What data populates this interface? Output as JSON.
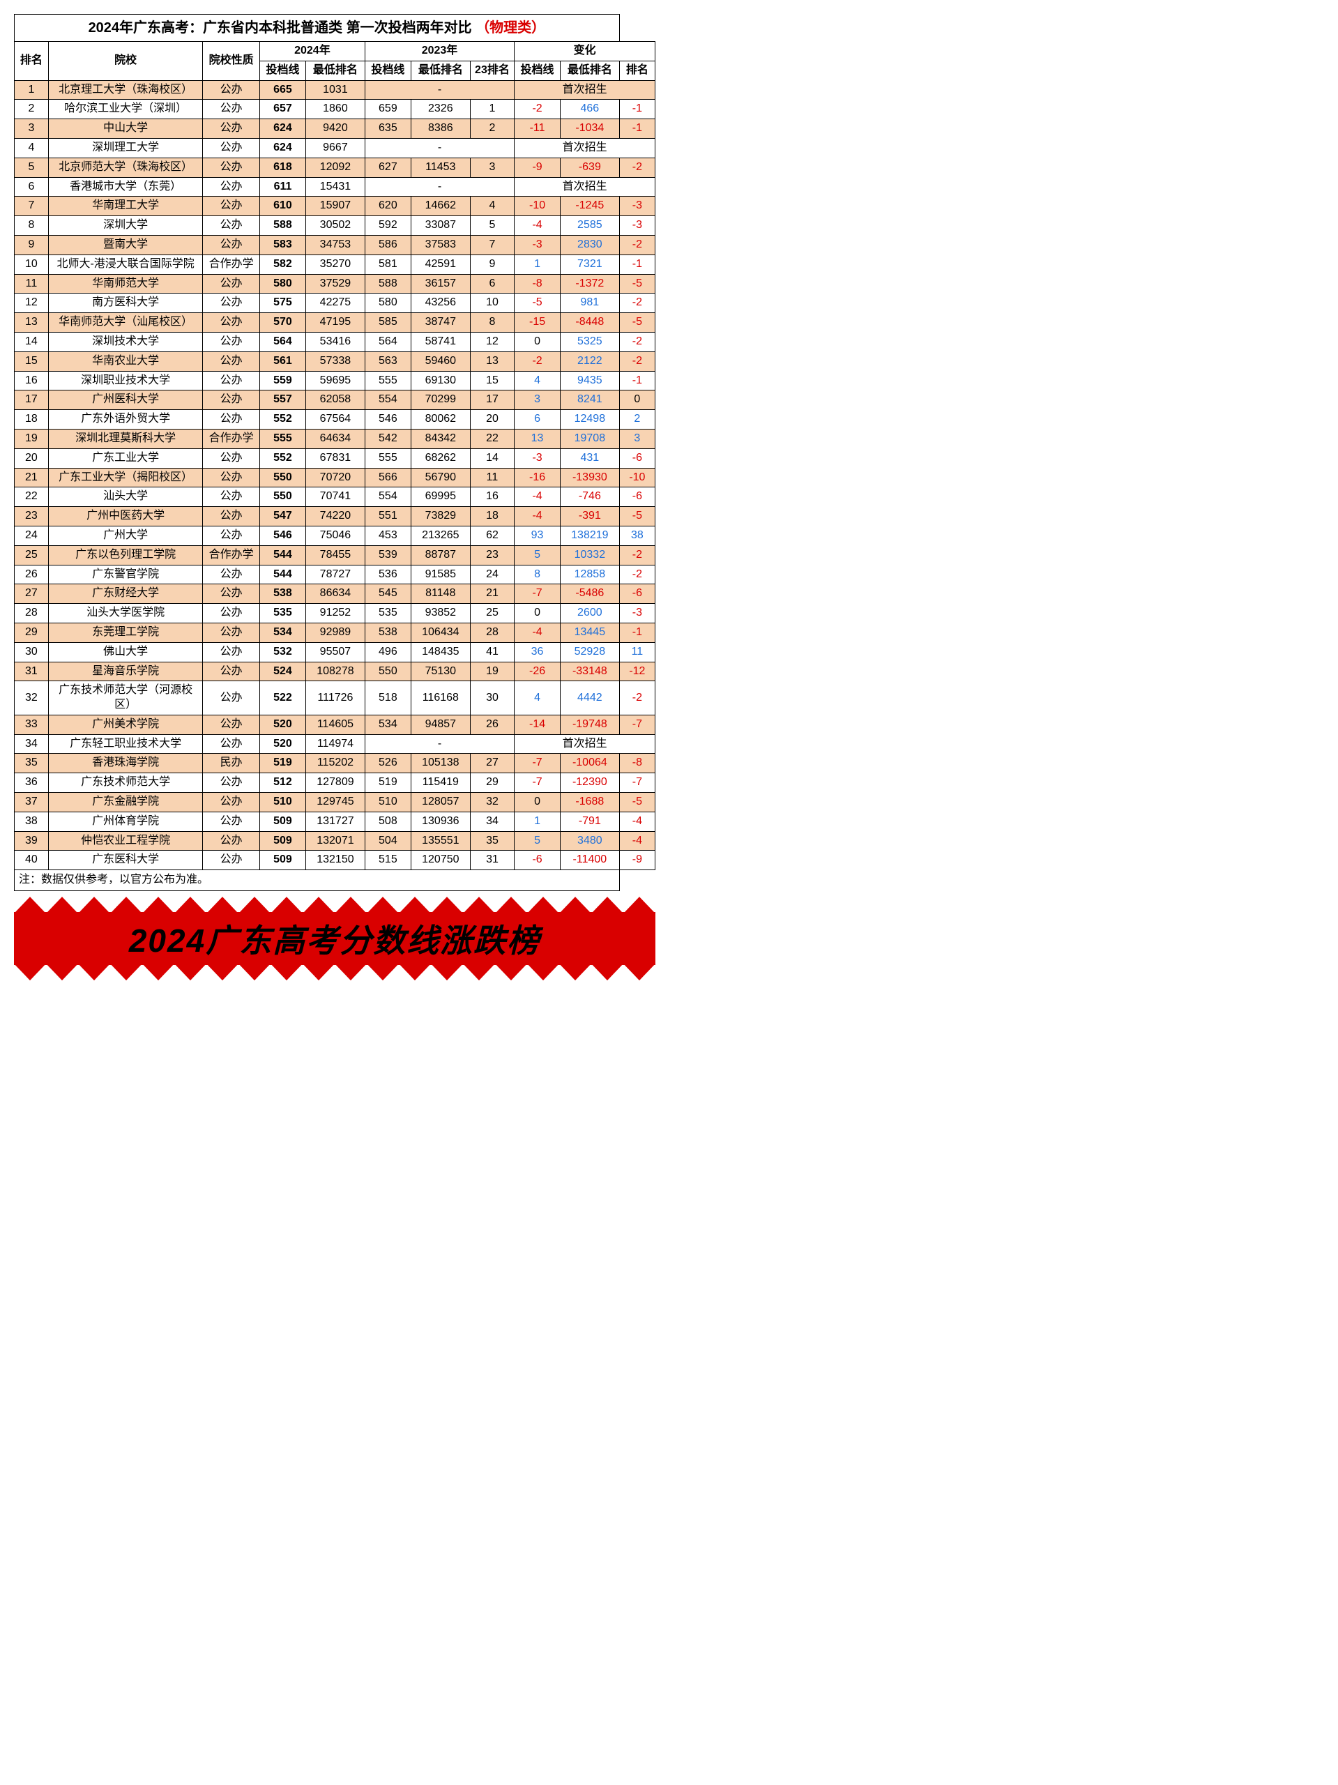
{
  "title_main": "2024年广东高考：广东省内本科批普通类 第一次投档两年对比",
  "title_suffix": "（物理类）",
  "headers": {
    "rank": "排名",
    "school": "院校",
    "nature": "院校性质",
    "year2024": "2024年",
    "year2023": "2023年",
    "change": "变化",
    "score": "投档线",
    "lowrank": "最低排名",
    "rank23": "23排名",
    "d_score": "投档线",
    "d_lowrank": "最低排名",
    "d_rank": "排名"
  },
  "note": "注：数据仅供参考，以官方公布为准。",
  "banner": "2024广东高考分数线涨跌榜",
  "first_enroll_label": "首次招生",
  "colors": {
    "odd_row": "#f8d3b2",
    "even_row": "#ffffff",
    "neg": "#d90000",
    "pos": "#1e6fd9",
    "zero": "#000000",
    "title_red": "#d90000",
    "banner_bg": "#d90000"
  },
  "rows": [
    {
      "rank": 1,
      "school": "北京理工大学（珠海校区）",
      "nature": "公办",
      "s24": 665,
      "r24": 1031,
      "first": true
    },
    {
      "rank": 2,
      "school": "哈尔滨工业大学（深圳）",
      "nature": "公办",
      "s24": 657,
      "r24": 1860,
      "s23": 659,
      "r23": 2326,
      "p23": 1,
      "ds": -2,
      "dr": 466,
      "dp": -1
    },
    {
      "rank": 3,
      "school": "中山大学",
      "nature": "公办",
      "s24": 624,
      "r24": 9420,
      "s23": 635,
      "r23": 8386,
      "p23": 2,
      "ds": -11,
      "dr": -1034,
      "dp": -1
    },
    {
      "rank": 4,
      "school": "深圳理工大学",
      "nature": "公办",
      "s24": 624,
      "r24": 9667,
      "first": true
    },
    {
      "rank": 5,
      "school": "北京师范大学（珠海校区）",
      "nature": "公办",
      "s24": 618,
      "r24": 12092,
      "s23": 627,
      "r23": 11453,
      "p23": 3,
      "ds": -9,
      "dr": -639,
      "dp": -2
    },
    {
      "rank": 6,
      "school": "香港城市大学（东莞）",
      "nature": "公办",
      "s24": 611,
      "r24": 15431,
      "first": true
    },
    {
      "rank": 7,
      "school": "华南理工大学",
      "nature": "公办",
      "s24": 610,
      "r24": 15907,
      "s23": 620,
      "r23": 14662,
      "p23": 4,
      "ds": -10,
      "dr": -1245,
      "dp": -3
    },
    {
      "rank": 8,
      "school": "深圳大学",
      "nature": "公办",
      "s24": 588,
      "r24": 30502,
      "s23": 592,
      "r23": 33087,
      "p23": 5,
      "ds": -4,
      "dr": 2585,
      "dp": -3
    },
    {
      "rank": 9,
      "school": "暨南大学",
      "nature": "公办",
      "s24": 583,
      "r24": 34753,
      "s23": 586,
      "r23": 37583,
      "p23": 7,
      "ds": -3,
      "dr": 2830,
      "dp": -2
    },
    {
      "rank": 10,
      "school": "北师大-港浸大联合国际学院",
      "nature": "合作办学",
      "s24": 582,
      "r24": 35270,
      "s23": 581,
      "r23": 42591,
      "p23": 9,
      "ds": 1,
      "dr": 7321,
      "dp": -1
    },
    {
      "rank": 11,
      "school": "华南师范大学",
      "nature": "公办",
      "s24": 580,
      "r24": 37529,
      "s23": 588,
      "r23": 36157,
      "p23": 6,
      "ds": -8,
      "dr": -1372,
      "dp": -5
    },
    {
      "rank": 12,
      "school": "南方医科大学",
      "nature": "公办",
      "s24": 575,
      "r24": 42275,
      "s23": 580,
      "r23": 43256,
      "p23": 10,
      "ds": -5,
      "dr": 981,
      "dp": -2
    },
    {
      "rank": 13,
      "school": "华南师范大学（汕尾校区）",
      "nature": "公办",
      "s24": 570,
      "r24": 47195,
      "s23": 585,
      "r23": 38747,
      "p23": 8,
      "ds": -15,
      "dr": -8448,
      "dp": -5
    },
    {
      "rank": 14,
      "school": "深圳技术大学",
      "nature": "公办",
      "s24": 564,
      "r24": 53416,
      "s23": 564,
      "r23": 58741,
      "p23": 12,
      "ds": 0,
      "dr": 5325,
      "dp": -2
    },
    {
      "rank": 15,
      "school": "华南农业大学",
      "nature": "公办",
      "s24": 561,
      "r24": 57338,
      "s23": 563,
      "r23": 59460,
      "p23": 13,
      "ds": -2,
      "dr": 2122,
      "dp": -2
    },
    {
      "rank": 16,
      "school": "深圳职业技术大学",
      "nature": "公办",
      "s24": 559,
      "r24": 59695,
      "s23": 555,
      "r23": 69130,
      "p23": 15,
      "ds": 4,
      "dr": 9435,
      "dp": -1
    },
    {
      "rank": 17,
      "school": "广州医科大学",
      "nature": "公办",
      "s24": 557,
      "r24": 62058,
      "s23": 554,
      "r23": 70299,
      "p23": 17,
      "ds": 3,
      "dr": 8241,
      "dp": 0
    },
    {
      "rank": 18,
      "school": "广东外语外贸大学",
      "nature": "公办",
      "s24": 552,
      "r24": 67564,
      "s23": 546,
      "r23": 80062,
      "p23": 20,
      "ds": 6,
      "dr": 12498,
      "dp": 2
    },
    {
      "rank": 19,
      "school": "深圳北理莫斯科大学",
      "nature": "合作办学",
      "s24": 555,
      "r24": 64634,
      "s23": 542,
      "r23": 84342,
      "p23": 22,
      "ds": 13,
      "dr": 19708,
      "dp": 3
    },
    {
      "rank": 20,
      "school": "广东工业大学",
      "nature": "公办",
      "s24": 552,
      "r24": 67831,
      "s23": 555,
      "r23": 68262,
      "p23": 14,
      "ds": -3,
      "dr": 431,
      "dp": -6
    },
    {
      "rank": 21,
      "school": "广东工业大学（揭阳校区）",
      "nature": "公办",
      "s24": 550,
      "r24": 70720,
      "s23": 566,
      "r23": 56790,
      "p23": 11,
      "ds": -16,
      "dr": -13930,
      "dp": -10
    },
    {
      "rank": 22,
      "school": "汕头大学",
      "nature": "公办",
      "s24": 550,
      "r24": 70741,
      "s23": 554,
      "r23": 69995,
      "p23": 16,
      "ds": -4,
      "dr": -746,
      "dp": -6
    },
    {
      "rank": 23,
      "school": "广州中医药大学",
      "nature": "公办",
      "s24": 547,
      "r24": 74220,
      "s23": 551,
      "r23": 73829,
      "p23": 18,
      "ds": -4,
      "dr": -391,
      "dp": -5
    },
    {
      "rank": 24,
      "school": "广州大学",
      "nature": "公办",
      "s24": 546,
      "r24": 75046,
      "s23": 453,
      "r23": 213265,
      "p23": 62,
      "ds": 93,
      "dr": 138219,
      "dp": 38
    },
    {
      "rank": 25,
      "school": "广东以色列理工学院",
      "nature": "合作办学",
      "s24": 544,
      "r24": 78455,
      "s23": 539,
      "r23": 88787,
      "p23": 23,
      "ds": 5,
      "dr": 10332,
      "dp": -2
    },
    {
      "rank": 26,
      "school": "广东警官学院",
      "nature": "公办",
      "s24": 544,
      "r24": 78727,
      "s23": 536,
      "r23": 91585,
      "p23": 24,
      "ds": 8,
      "dr": 12858,
      "dp": -2
    },
    {
      "rank": 27,
      "school": "广东财经大学",
      "nature": "公办",
      "s24": 538,
      "r24": 86634,
      "s23": 545,
      "r23": 81148,
      "p23": 21,
      "ds": -7,
      "dr": -5486,
      "dp": -6
    },
    {
      "rank": 28,
      "school": "汕头大学医学院",
      "nature": "公办",
      "s24": 535,
      "r24": 91252,
      "s23": 535,
      "r23": 93852,
      "p23": 25,
      "ds": 0,
      "dr": 2600,
      "dp": -3
    },
    {
      "rank": 29,
      "school": "东莞理工学院",
      "nature": "公办",
      "s24": 534,
      "r24": 92989,
      "s23": 538,
      "r23": 106434,
      "p23": 28,
      "ds": -4,
      "dr": 13445,
      "dp": -1
    },
    {
      "rank": 30,
      "school": "佛山大学",
      "nature": "公办",
      "s24": 532,
      "r24": 95507,
      "s23": 496,
      "r23": 148435,
      "p23": 41,
      "ds": 36,
      "dr": 52928,
      "dp": 11
    },
    {
      "rank": 31,
      "school": "星海音乐学院",
      "nature": "公办",
      "s24": 524,
      "r24": 108278,
      "s23": 550,
      "r23": 75130,
      "p23": 19,
      "ds": -26,
      "dr": -33148,
      "dp": -12
    },
    {
      "rank": 32,
      "school": "广东技术师范大学（河源校区）",
      "nature": "公办",
      "s24": 522,
      "r24": 111726,
      "s23": 518,
      "r23": 116168,
      "p23": 30,
      "ds": 4,
      "dr": 4442,
      "dp": -2
    },
    {
      "rank": 33,
      "school": "广州美术学院",
      "nature": "公办",
      "s24": 520,
      "r24": 114605,
      "s23": 534,
      "r23": 94857,
      "p23": 26,
      "ds": -14,
      "dr": -19748,
      "dp": -7
    },
    {
      "rank": 34,
      "school": "广东轻工职业技术大学",
      "nature": "公办",
      "s24": 520,
      "r24": 114974,
      "first": true
    },
    {
      "rank": 35,
      "school": "香港珠海学院",
      "nature": "民办",
      "s24": 519,
      "r24": 115202,
      "s23": 526,
      "r23": 105138,
      "p23": 27,
      "ds": -7,
      "dr": -10064,
      "dp": -8
    },
    {
      "rank": 36,
      "school": "广东技术师范大学",
      "nature": "公办",
      "s24": 512,
      "r24": 127809,
      "s23": 519,
      "r23": 115419,
      "p23": 29,
      "ds": -7,
      "dr": -12390,
      "dp": -7
    },
    {
      "rank": 37,
      "school": "广东金融学院",
      "nature": "公办",
      "s24": 510,
      "r24": 129745,
      "s23": 510,
      "r23": 128057,
      "p23": 32,
      "ds": 0,
      "dr": -1688,
      "dp": -5
    },
    {
      "rank": 38,
      "school": "广州体育学院",
      "nature": "公办",
      "s24": 509,
      "r24": 131727,
      "s23": 508,
      "r23": 130936,
      "p23": 34,
      "ds": 1,
      "dr": -791,
      "dp": -4
    },
    {
      "rank": 39,
      "school": "仲恺农业工程学院",
      "nature": "公办",
      "s24": 509,
      "r24": 132071,
      "s23": 504,
      "r23": 135551,
      "p23": 35,
      "ds": 5,
      "dr": 3480,
      "dp": -4
    },
    {
      "rank": 40,
      "school": "广东医科大学",
      "nature": "公办",
      "s24": 509,
      "r24": 132150,
      "s23": 515,
      "r23": 120750,
      "p23": 31,
      "ds": -6,
      "dr": -11400,
      "dp": -9
    }
  ]
}
